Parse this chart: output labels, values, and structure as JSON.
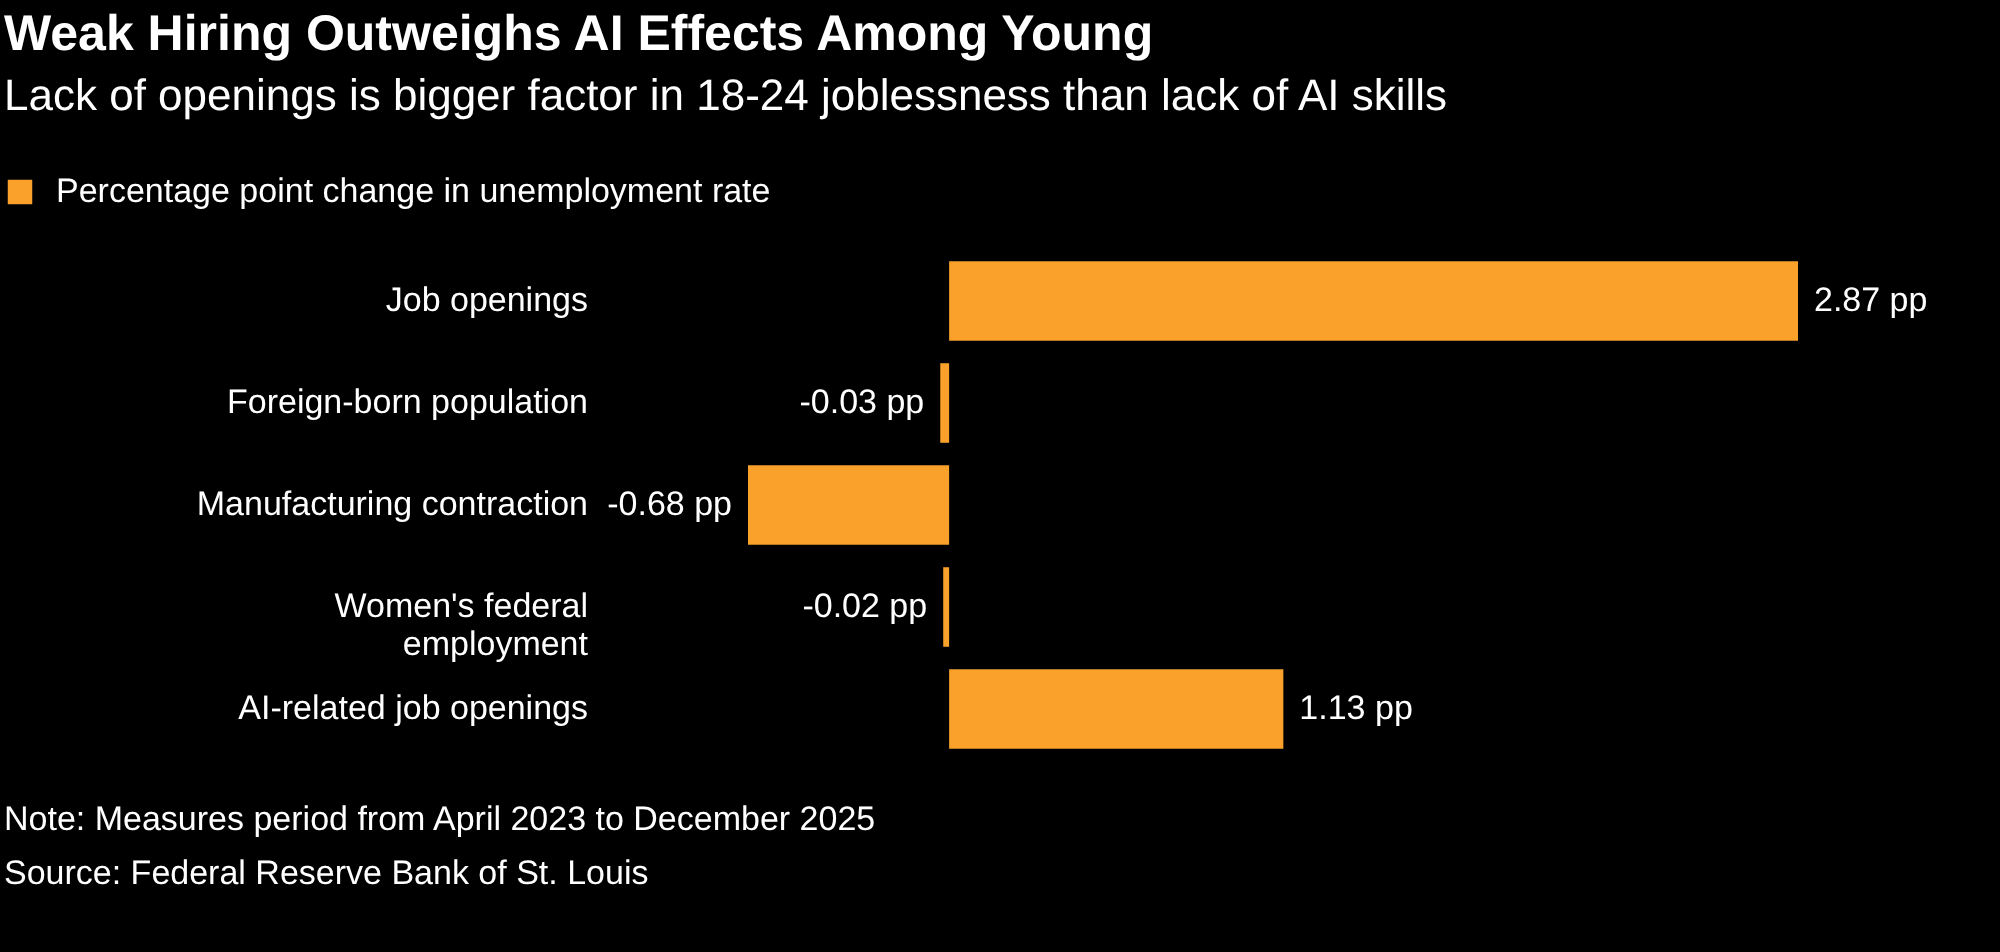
{
  "chart_data": {
    "type": "bar",
    "orientation": "horizontal",
    "title": "Weak Hiring Outweighs AI Effects Among Young",
    "subtitle": "Lack of openings is bigger factor in 18-24 joblessness than lack of AI skills",
    "categories": [
      "Job openings",
      "Foreign-born population",
      "Manufacturing contraction",
      "Women's federal\nemployment",
      "AI-related job openings"
    ],
    "series": [
      {
        "name": "Percentage point change in unemployment rate",
        "color": "#f9a12b",
        "values": [
          2.87,
          -0.03,
          -0.68,
          -0.02,
          1.13
        ],
        "value_labels": [
          "2.87 pp",
          "-0.03 pp",
          "-0.68 pp",
          "-0.02 pp",
          "1.13 pp"
        ]
      }
    ],
    "legend": "top left",
    "annotations": [
      "Note: Measures period from April 2023 to December 2025",
      "Source: Federal Reserve Bank of St. Louis"
    ]
  }
}
